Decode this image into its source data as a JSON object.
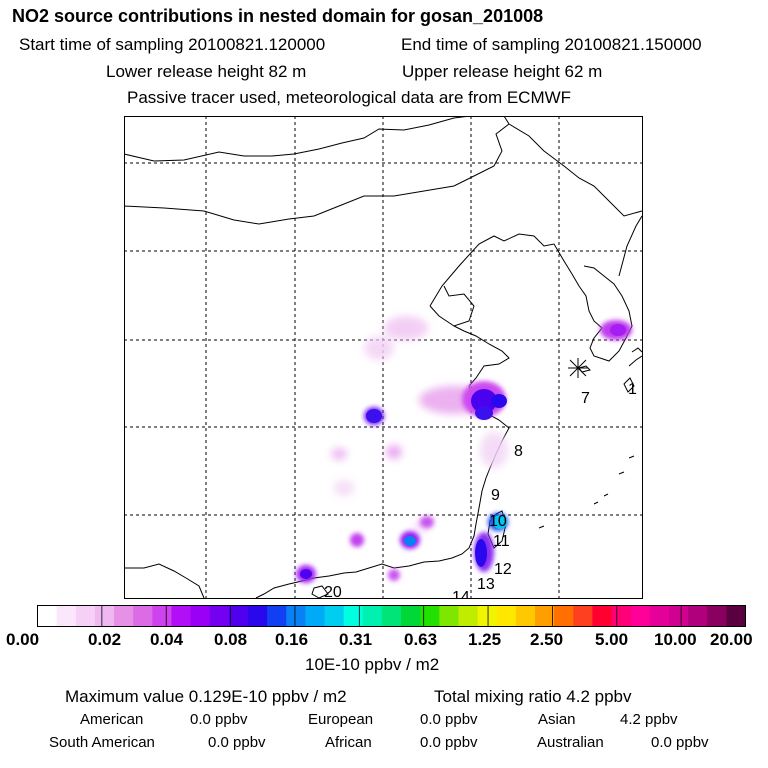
{
  "header": {
    "title": "NO2 source contributions in nested domain for gosan_201008",
    "start_label": "Start time of sampling 20100821.120000",
    "end_label": "End time of sampling 20100821.150000",
    "lower_release": "Lower release height   82 m",
    "upper_release": "Upper release height   62 m",
    "tracer_note": "Passive tracer used, meteorological data are from ECMWF"
  },
  "map": {
    "receptor_marker": "asterisk-receptor",
    "labels": [
      "1",
      "7",
      "8",
      "9",
      "10",
      "11",
      "12",
      "13",
      "14",
      "20"
    ]
  },
  "colorbar": {
    "ticks": [
      "0.00",
      "0.02",
      "0.04",
      "0.08",
      "0.16",
      "0.31",
      "0.63",
      "1.25",
      "2.50",
      "5.00",
      "10.00",
      "20.00"
    ],
    "units": "10E-10 ppbv / m2",
    "colors": [
      "#ffffff",
      "#fbe7fb",
      "#f6d0f6",
      "#f0b8f0",
      "#e690e6",
      "#dc6ce6",
      "#cf43ee",
      "#b30ff7",
      "#9a00f5",
      "#7400f2",
      "#5000ef",
      "#2a08ee",
      "#1040f2",
      "#0a80f5",
      "#00aaf7",
      "#00cdf0",
      "#00ffe0",
      "#00f0b0",
      "#00e478",
      "#00d838",
      "#22e000",
      "#7ee600",
      "#c0ec00",
      "#f0f400",
      "#ffe800",
      "#ffc800",
      "#ff9e00",
      "#ff7000",
      "#ff4020",
      "#ff0030",
      "#ff0077",
      "#ff0099",
      "#e6009a",
      "#d00090",
      "#b0007c",
      "#8a0060",
      "#5a0040"
    ]
  },
  "summary": {
    "max_value": "Maximum value  0.129E-10 ppbv / m2",
    "total_mixing": "Total mixing ratio       4.2 ppbv",
    "american_label": "American",
    "american_value": "0.0 ppbv",
    "european_label": "European",
    "european_value": "0.0 ppbv",
    "asian_label": "Asian",
    "asian_value": "4.2 ppbv",
    "south_american_label": "South American",
    "south_american_value": "0.0 ppbv",
    "african_label": "African",
    "african_value": "0.0 ppbv",
    "australian_label": "Australian",
    "australian_value": "0.0 ppbv"
  }
}
